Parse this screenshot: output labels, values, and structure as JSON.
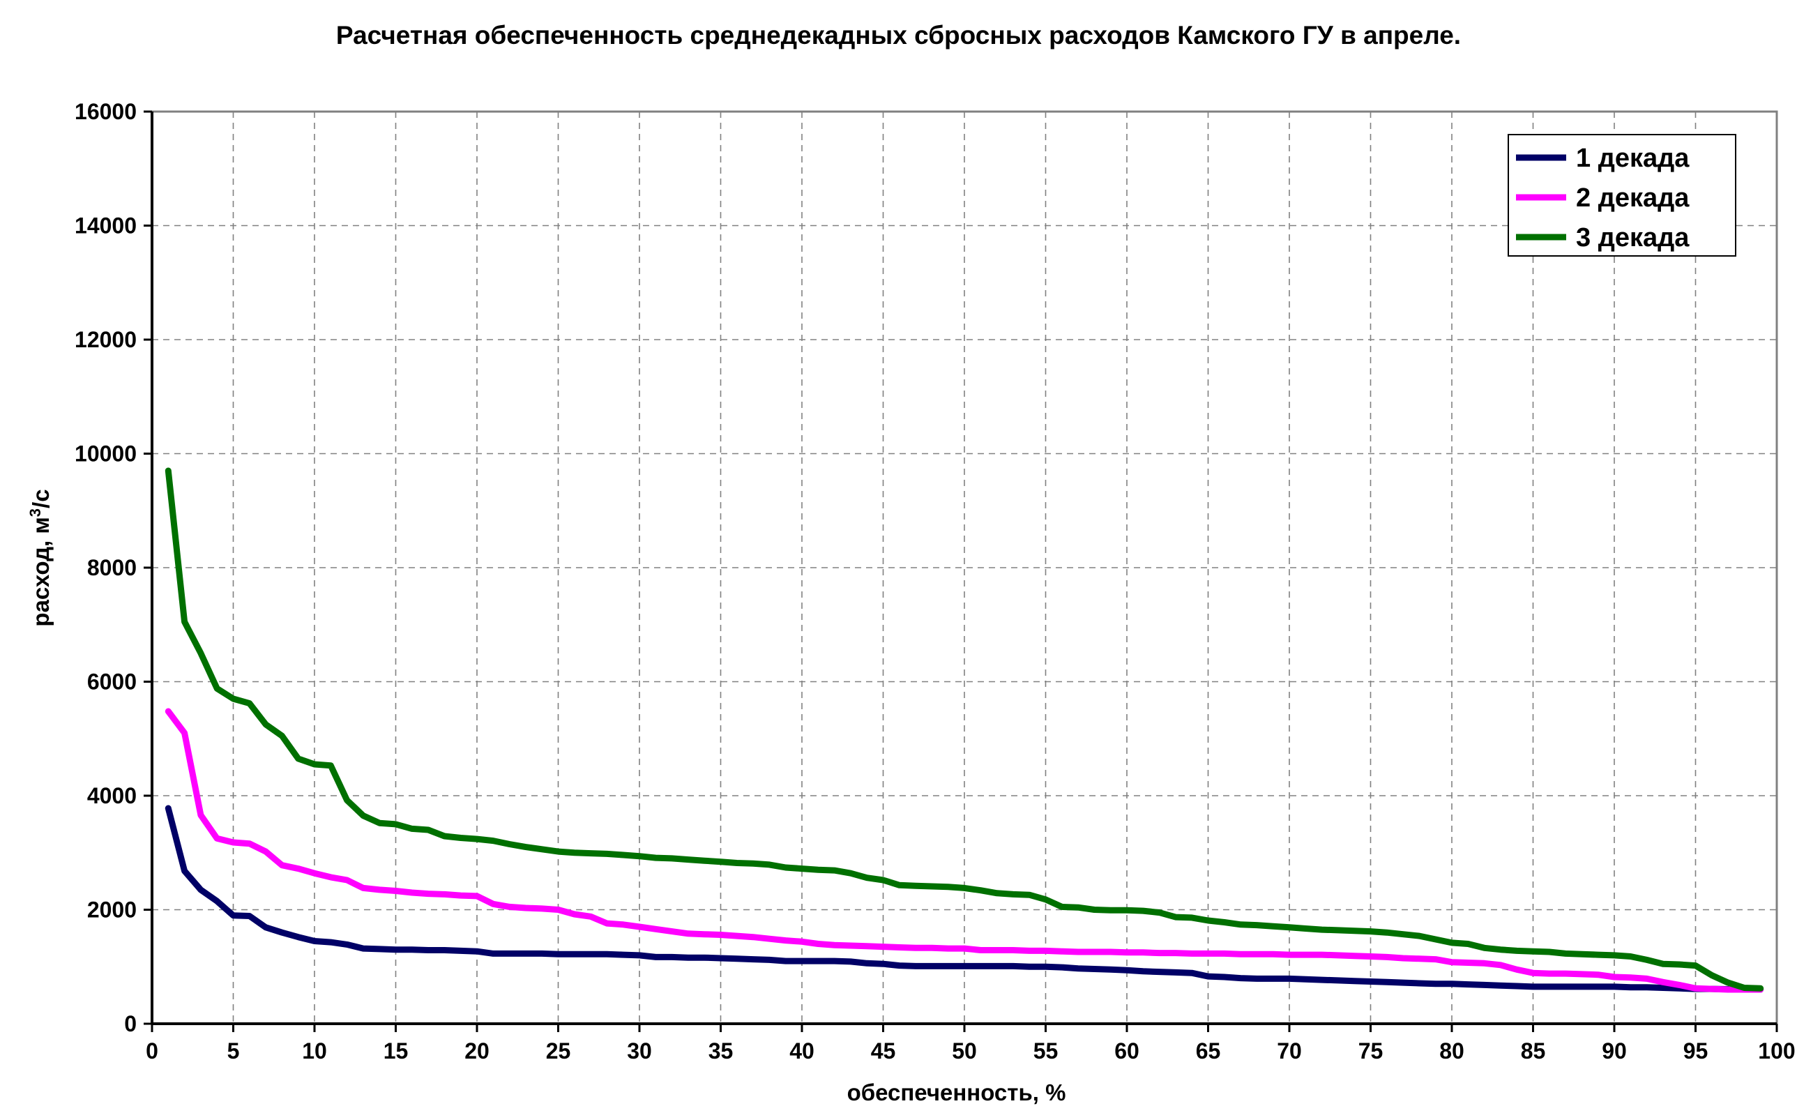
{
  "chart_data": {
    "type": "line",
    "title": "Расчетная обеспеченность среднедекадных сбросных расходов Камского ГУ в апреле.",
    "xlabel": "обеспеченность, %",
    "ylabel_main": "расход, м",
    "ylabel_sup": "3",
    "ylabel_tail": "/с",
    "xlim": [
      0,
      100
    ],
    "ylim": [
      0,
      16000
    ],
    "xticks": [
      0,
      5,
      10,
      15,
      20,
      25,
      30,
      35,
      40,
      45,
      50,
      55,
      60,
      65,
      70,
      75,
      80,
      85,
      90,
      95,
      100
    ],
    "yticks": [
      0,
      2000,
      4000,
      6000,
      8000,
      10000,
      12000,
      14000,
      16000
    ],
    "grid": true,
    "legend_position": "top-right",
    "series": [
      {
        "name": "1 декада",
        "color": "#000066",
        "points": [
          [
            1,
            3780
          ],
          [
            2,
            2680
          ],
          [
            3,
            2350
          ],
          [
            4,
            2150
          ],
          [
            5,
            1900
          ],
          [
            6,
            1890
          ],
          [
            7,
            1690
          ],
          [
            8,
            1600
          ],
          [
            9,
            1520
          ],
          [
            10,
            1450
          ],
          [
            11,
            1430
          ],
          [
            12,
            1390
          ],
          [
            13,
            1320
          ],
          [
            14,
            1310
          ],
          [
            15,
            1300
          ],
          [
            16,
            1300
          ],
          [
            17,
            1290
          ],
          [
            18,
            1290
          ],
          [
            19,
            1280
          ],
          [
            20,
            1270
          ],
          [
            21,
            1230
          ],
          [
            22,
            1230
          ],
          [
            23,
            1230
          ],
          [
            24,
            1230
          ],
          [
            25,
            1220
          ],
          [
            26,
            1220
          ],
          [
            27,
            1220
          ],
          [
            28,
            1220
          ],
          [
            29,
            1210
          ],
          [
            30,
            1200
          ],
          [
            31,
            1170
          ],
          [
            32,
            1170
          ],
          [
            33,
            1160
          ],
          [
            34,
            1160
          ],
          [
            35,
            1150
          ],
          [
            36,
            1140
          ],
          [
            37,
            1130
          ],
          [
            38,
            1120
          ],
          [
            39,
            1100
          ],
          [
            40,
            1100
          ],
          [
            41,
            1100
          ],
          [
            42,
            1100
          ],
          [
            43,
            1090
          ],
          [
            44,
            1060
          ],
          [
            45,
            1050
          ],
          [
            46,
            1020
          ],
          [
            47,
            1010
          ],
          [
            48,
            1010
          ],
          [
            49,
            1010
          ],
          [
            50,
            1010
          ],
          [
            51,
            1010
          ],
          [
            52,
            1010
          ],
          [
            53,
            1010
          ],
          [
            54,
            1000
          ],
          [
            55,
            1000
          ],
          [
            56,
            990
          ],
          [
            57,
            970
          ],
          [
            58,
            960
          ],
          [
            59,
            950
          ],
          [
            60,
            940
          ],
          [
            61,
            920
          ],
          [
            62,
            910
          ],
          [
            63,
            900
          ],
          [
            64,
            890
          ],
          [
            65,
            830
          ],
          [
            66,
            820
          ],
          [
            67,
            800
          ],
          [
            68,
            790
          ],
          [
            69,
            790
          ],
          [
            70,
            790
          ],
          [
            71,
            780
          ],
          [
            72,
            770
          ],
          [
            73,
            760
          ],
          [
            74,
            750
          ],
          [
            75,
            740
          ],
          [
            76,
            730
          ],
          [
            77,
            720
          ],
          [
            78,
            710
          ],
          [
            79,
            700
          ],
          [
            80,
            700
          ],
          [
            81,
            690
          ],
          [
            82,
            680
          ],
          [
            83,
            670
          ],
          [
            84,
            660
          ],
          [
            85,
            650
          ],
          [
            86,
            650
          ],
          [
            87,
            650
          ],
          [
            88,
            650
          ],
          [
            89,
            650
          ],
          [
            90,
            650
          ],
          [
            91,
            640
          ],
          [
            92,
            640
          ],
          [
            93,
            630
          ],
          [
            94,
            620
          ],
          [
            95,
            610
          ],
          [
            96,
            610
          ],
          [
            97,
            605
          ],
          [
            98,
            600
          ],
          [
            99,
            600
          ]
        ]
      },
      {
        "name": "2 декада",
        "color": "#ff00ff",
        "points": [
          [
            1,
            5480
          ],
          [
            2,
            5100
          ],
          [
            3,
            3660
          ],
          [
            4,
            3250
          ],
          [
            5,
            3180
          ],
          [
            6,
            3160
          ],
          [
            7,
            3020
          ],
          [
            8,
            2780
          ],
          [
            9,
            2720
          ],
          [
            10,
            2640
          ],
          [
            11,
            2570
          ],
          [
            12,
            2520
          ],
          [
            13,
            2380
          ],
          [
            14,
            2350
          ],
          [
            15,
            2330
          ],
          [
            16,
            2300
          ],
          [
            17,
            2280
          ],
          [
            18,
            2270
          ],
          [
            19,
            2250
          ],
          [
            20,
            2240
          ],
          [
            21,
            2100
          ],
          [
            22,
            2050
          ],
          [
            23,
            2030
          ],
          [
            24,
            2020
          ],
          [
            25,
            2000
          ],
          [
            26,
            1920
          ],
          [
            27,
            1880
          ],
          [
            28,
            1760
          ],
          [
            29,
            1740
          ],
          [
            30,
            1700
          ],
          [
            31,
            1660
          ],
          [
            32,
            1620
          ],
          [
            33,
            1580
          ],
          [
            34,
            1570
          ],
          [
            35,
            1560
          ],
          [
            36,
            1540
          ],
          [
            37,
            1520
          ],
          [
            38,
            1490
          ],
          [
            39,
            1460
          ],
          [
            40,
            1440
          ],
          [
            41,
            1400
          ],
          [
            42,
            1380
          ],
          [
            43,
            1370
          ],
          [
            44,
            1360
          ],
          [
            45,
            1350
          ],
          [
            46,
            1340
          ],
          [
            47,
            1330
          ],
          [
            48,
            1330
          ],
          [
            49,
            1320
          ],
          [
            50,
            1320
          ],
          [
            51,
            1290
          ],
          [
            52,
            1290
          ],
          [
            53,
            1290
          ],
          [
            54,
            1280
          ],
          [
            55,
            1280
          ],
          [
            56,
            1270
          ],
          [
            57,
            1260
          ],
          [
            58,
            1260
          ],
          [
            59,
            1260
          ],
          [
            60,
            1250
          ],
          [
            61,
            1250
          ],
          [
            62,
            1240
          ],
          [
            63,
            1240
          ],
          [
            64,
            1230
          ],
          [
            65,
            1230
          ],
          [
            66,
            1230
          ],
          [
            67,
            1220
          ],
          [
            68,
            1220
          ],
          [
            69,
            1220
          ],
          [
            70,
            1210
          ],
          [
            71,
            1210
          ],
          [
            72,
            1210
          ],
          [
            73,
            1200
          ],
          [
            74,
            1190
          ],
          [
            75,
            1180
          ],
          [
            76,
            1170
          ],
          [
            77,
            1150
          ],
          [
            78,
            1140
          ],
          [
            79,
            1130
          ],
          [
            80,
            1080
          ],
          [
            81,
            1070
          ],
          [
            82,
            1060
          ],
          [
            83,
            1030
          ],
          [
            84,
            950
          ],
          [
            85,
            890
          ],
          [
            86,
            880
          ],
          [
            87,
            880
          ],
          [
            88,
            870
          ],
          [
            89,
            860
          ],
          [
            90,
            820
          ],
          [
            91,
            810
          ],
          [
            92,
            790
          ],
          [
            93,
            730
          ],
          [
            94,
            680
          ],
          [
            95,
            620
          ],
          [
            96,
            610
          ],
          [
            97,
            600
          ],
          [
            98,
            600
          ],
          [
            99,
            600
          ]
        ]
      },
      {
        "name": "3 декада",
        "color": "#007000",
        "points": [
          [
            1,
            9700
          ],
          [
            2,
            7050
          ],
          [
            3,
            6500
          ],
          [
            4,
            5880
          ],
          [
            5,
            5700
          ],
          [
            6,
            5620
          ],
          [
            7,
            5250
          ],
          [
            8,
            5050
          ],
          [
            9,
            4650
          ],
          [
            10,
            4550
          ],
          [
            11,
            4530
          ],
          [
            12,
            3920
          ],
          [
            13,
            3650
          ],
          [
            14,
            3520
          ],
          [
            15,
            3500
          ],
          [
            16,
            3420
          ],
          [
            17,
            3400
          ],
          [
            18,
            3290
          ],
          [
            19,
            3260
          ],
          [
            20,
            3240
          ],
          [
            21,
            3210
          ],
          [
            22,
            3150
          ],
          [
            23,
            3100
          ],
          [
            24,
            3060
          ],
          [
            25,
            3020
          ],
          [
            26,
            3000
          ],
          [
            27,
            2990
          ],
          [
            28,
            2980
          ],
          [
            29,
            2960
          ],
          [
            30,
            2940
          ],
          [
            31,
            2910
          ],
          [
            32,
            2900
          ],
          [
            33,
            2880
          ],
          [
            34,
            2860
          ],
          [
            35,
            2840
          ],
          [
            36,
            2820
          ],
          [
            37,
            2810
          ],
          [
            38,
            2790
          ],
          [
            39,
            2740
          ],
          [
            40,
            2720
          ],
          [
            41,
            2700
          ],
          [
            42,
            2690
          ],
          [
            43,
            2640
          ],
          [
            44,
            2560
          ],
          [
            45,
            2520
          ],
          [
            46,
            2430
          ],
          [
            47,
            2420
          ],
          [
            48,
            2410
          ],
          [
            49,
            2400
          ],
          [
            50,
            2380
          ],
          [
            51,
            2340
          ],
          [
            52,
            2290
          ],
          [
            53,
            2270
          ],
          [
            54,
            2260
          ],
          [
            55,
            2180
          ],
          [
            56,
            2050
          ],
          [
            57,
            2040
          ],
          [
            58,
            2000
          ],
          [
            59,
            1990
          ],
          [
            60,
            1990
          ],
          [
            61,
            1980
          ],
          [
            62,
            1950
          ],
          [
            63,
            1870
          ],
          [
            64,
            1860
          ],
          [
            65,
            1810
          ],
          [
            66,
            1780
          ],
          [
            67,
            1740
          ],
          [
            68,
            1730
          ],
          [
            69,
            1710
          ],
          [
            70,
            1690
          ],
          [
            71,
            1670
          ],
          [
            72,
            1650
          ],
          [
            73,
            1640
          ],
          [
            74,
            1630
          ],
          [
            75,
            1620
          ],
          [
            76,
            1600
          ],
          [
            77,
            1570
          ],
          [
            78,
            1540
          ],
          [
            79,
            1480
          ],
          [
            80,
            1420
          ],
          [
            81,
            1400
          ],
          [
            82,
            1330
          ],
          [
            83,
            1300
          ],
          [
            84,
            1280
          ],
          [
            85,
            1270
          ],
          [
            86,
            1260
          ],
          [
            87,
            1230
          ],
          [
            88,
            1220
          ],
          [
            89,
            1210
          ],
          [
            90,
            1200
          ],
          [
            91,
            1180
          ],
          [
            92,
            1120
          ],
          [
            93,
            1050
          ],
          [
            94,
            1040
          ],
          [
            95,
            1020
          ],
          [
            96,
            850
          ],
          [
            97,
            720
          ],
          [
            98,
            630
          ],
          [
            99,
            620
          ]
        ]
      }
    ]
  }
}
